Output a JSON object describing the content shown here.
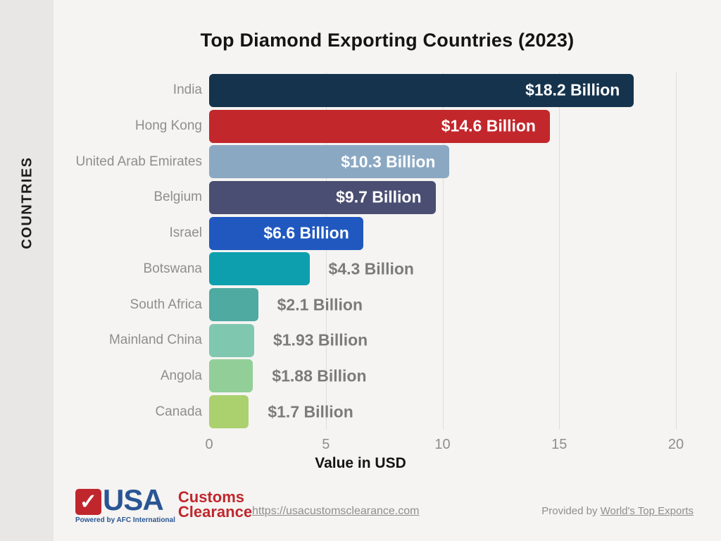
{
  "chart_data": {
    "type": "bar",
    "orientation": "horizontal",
    "title": "Top Diamond Exporting Countries (2023)",
    "xlabel": "Value in USD",
    "ylabel": "COUNTRIES",
    "unit": "USD billions",
    "xlim": [
      0,
      20
    ],
    "xticks": [
      0,
      5,
      10,
      15,
      20
    ],
    "grid": true,
    "categories": [
      "India",
      "Hong Kong",
      "United Arab Emirates",
      "Belgium",
      "Israel",
      "Botswana",
      "South Africa",
      "Mainland China",
      "Angola",
      "Canada"
    ],
    "values": [
      18.2,
      14.6,
      10.3,
      9.7,
      6.6,
      4.3,
      2.1,
      1.93,
      1.88,
      1.7
    ],
    "value_labels": [
      "$18.2 Billion",
      "$14.6 Billion",
      "$10.3 Billion",
      "$9.7 Billion",
      "$6.6 Billion",
      "$4.3 Billion",
      "$2.1 Billion",
      "$1.93 Billion",
      "$1.88 Billion",
      "$1.7 Billion"
    ],
    "bar_colors": [
      "#16334d",
      "#c2272c",
      "#8ba8c3",
      "#4a4e72",
      "#2058c0",
      "#0d9fae",
      "#4faaa2",
      "#80c7af",
      "#92cf98",
      "#abd06e"
    ],
    "value_label_color_inside": "#ffffff",
    "value_label_color_outside": "#7b7b7b"
  },
  "footer": {
    "logo": {
      "usa": "USA",
      "customs": "Customs",
      "clearance": "Clearance",
      "powered": "Powered by AFC International",
      "checkmark": "✓",
      "red": "#c0272d",
      "blue": "#2a5593"
    },
    "url": "https://usacustomsclearance.com",
    "provided_prefix": "Provided  by ",
    "provided_link": "World's Top Exports"
  }
}
